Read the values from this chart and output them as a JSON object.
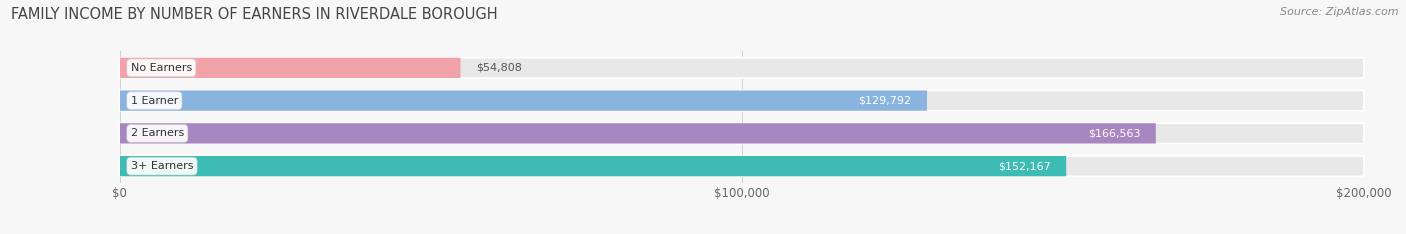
{
  "title": "FAMILY INCOME BY NUMBER OF EARNERS IN RIVERDALE BOROUGH",
  "source": "Source: ZipAtlas.com",
  "categories": [
    "No Earners",
    "1 Earner",
    "2 Earners",
    "3+ Earners"
  ],
  "values": [
    54808,
    129792,
    166563,
    152167
  ],
  "bar_colors": [
    "#f2a3aa",
    "#8ab4e0",
    "#a886c0",
    "#3dbcb4"
  ],
  "bar_bg_color": "#e8e8e8",
  "value_label_colors": [
    "#666666",
    "#ffffff",
    "#ffffff",
    "#ffffff"
  ],
  "cat_label_color": "#333333",
  "xlim": [
    0,
    200000
  ],
  "xticks": [
    0,
    100000,
    200000
  ],
  "xtick_labels": [
    "$0",
    "$100,000",
    "$200,000"
  ],
  "title_fontsize": 10.5,
  "source_fontsize": 8,
  "bar_height": 0.62,
  "background_color": "#f7f7f7",
  "grid_color": "#d0d0d0"
}
